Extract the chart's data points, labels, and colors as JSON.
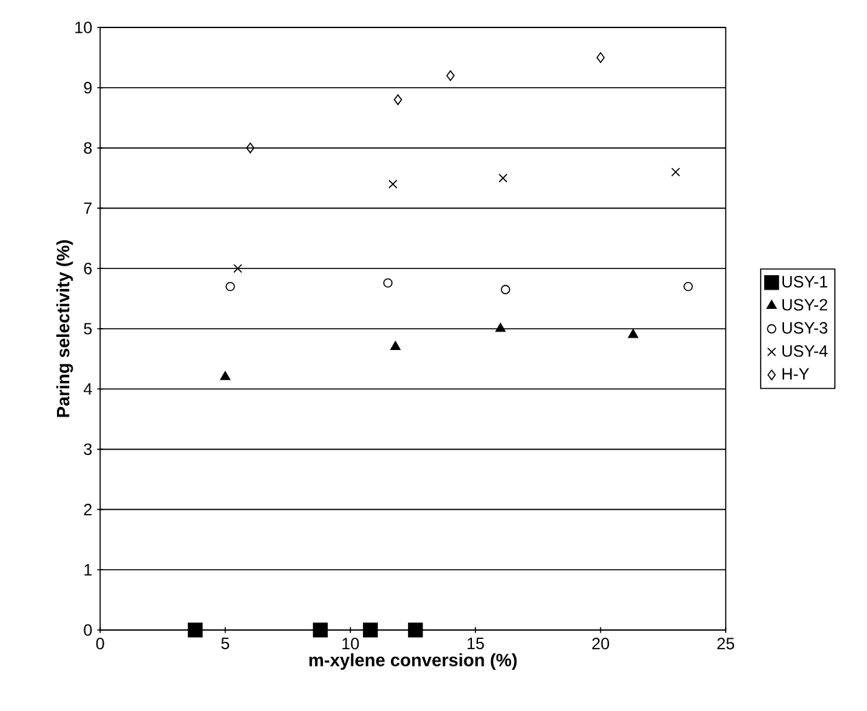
{
  "chart_data": {
    "type": "scatter",
    "xlabel": "m-xylene conversion (%)",
    "ylabel": "Paring selectivity (%)",
    "xlim": [
      0,
      25
    ],
    "xticks": [
      0,
      5,
      10,
      15,
      20,
      25
    ],
    "ylim": [
      0,
      10
    ],
    "yticks": [
      0,
      1,
      2,
      3,
      4,
      5,
      6,
      7,
      8,
      9,
      10
    ],
    "grid": "y",
    "legend": "right",
    "series": [
      {
        "name": "USY-1",
        "color": "#000000",
        "marker": "square",
        "x": [
          3.8,
          8.8,
          10.8,
          12.6
        ],
        "values": [
          0,
          0,
          0,
          0
        ]
      },
      {
        "name": "USY-2",
        "color": "#000000",
        "marker": "triangle",
        "x": [
          5.0,
          11.8,
          16.0,
          21.3
        ],
        "values": [
          4.2,
          4.7,
          5.0,
          4.9
        ]
      },
      {
        "name": "USY-3",
        "color": "#000000",
        "marker": "circle",
        "x": [
          5.2,
          11.5,
          16.2,
          23.5
        ],
        "values": [
          5.7,
          5.76,
          5.65,
          5.7
        ]
      },
      {
        "name": "USY-4",
        "color": "#000000",
        "marker": "cross",
        "x": [
          5.5,
          11.7,
          16.1,
          23.0
        ],
        "values": [
          6.0,
          7.4,
          7.5,
          7.6
        ]
      },
      {
        "name": "H-Y",
        "color": "#000000",
        "marker": "diamond",
        "x": [
          6.0,
          11.9,
          14.0,
          20.0
        ],
        "values": [
          8.0,
          8.8,
          9.2,
          9.5
        ]
      }
    ]
  }
}
